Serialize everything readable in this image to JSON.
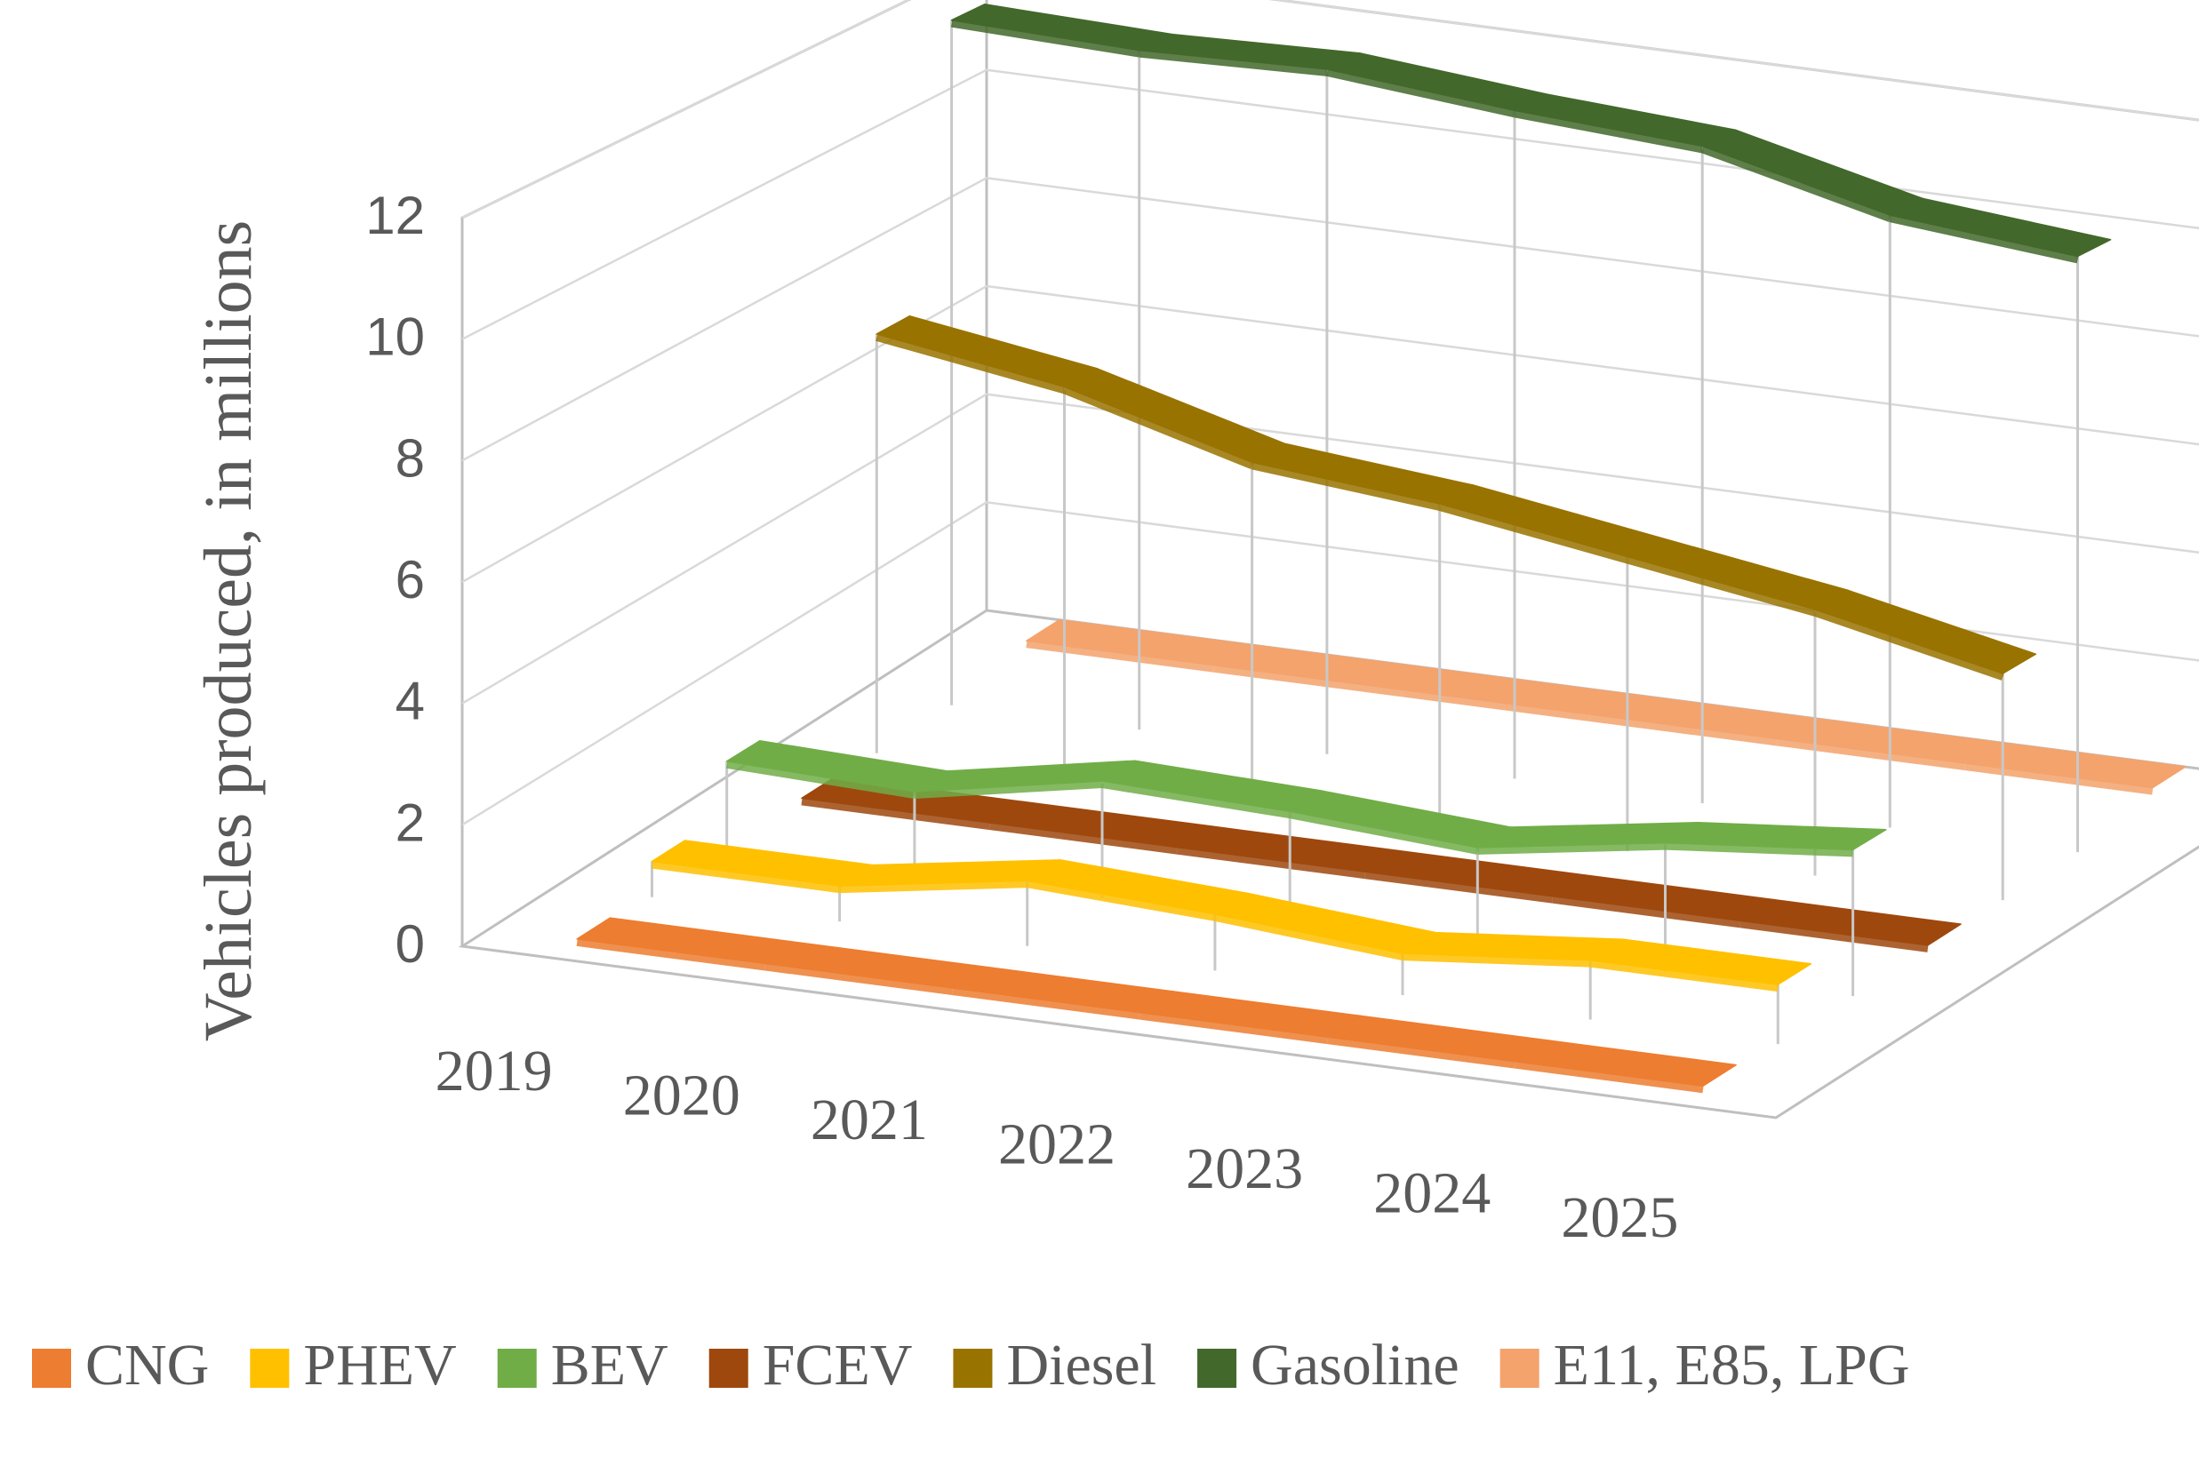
{
  "chart_data": {
    "type": "line",
    "title": "",
    "xlabel": "",
    "ylabel": "Vehicles produced, in millions",
    "categories": [
      "2019",
      "2020",
      "2021",
      "2022",
      "2023",
      "2024",
      "2025"
    ],
    "yticks": [
      "0",
      "2",
      "4",
      "6",
      "8",
      "10",
      "12"
    ],
    "ylim": [
      0,
      12
    ],
    "grid": true,
    "legend_position": "bottom",
    "series": [
      {
        "name": "CNG",
        "color": "#ED7D31",
        "values": [
          0.1,
          0.1,
          0.1,
          0.1,
          0.1,
          0.1,
          0.1
        ]
      },
      {
        "name": "PHEV",
        "color": "#FFC000",
        "values": [
          0.6,
          0.6,
          1.1,
          0.95,
          0.7,
          1.0,
          1.0
        ]
      },
      {
        "name": "BEV",
        "color": "#70AD47",
        "values": [
          1.5,
          1.4,
          2.0,
          1.9,
          1.7,
          2.2,
          2.5
        ]
      },
      {
        "name": "FCEV",
        "color": "#9E480E",
        "values": [
          0.05,
          0.05,
          0.05,
          0.05,
          0.05,
          0.05,
          0.05
        ]
      },
      {
        "name": "Diesel",
        "color": "#997300",
        "values": [
          7.4,
          6.9,
          6.0,
          5.7,
          5.2,
          4.7,
          4.0
        ]
      },
      {
        "name": "Gasoline",
        "color": "#43682B",
        "values": [
          12.3,
          12.2,
          12.3,
          12.0,
          11.8,
          11.0,
          10.7
        ]
      },
      {
        "name": "E11, E85, LPG",
        "color": "#F4A36C",
        "values": [
          0.3,
          0.3,
          0.3,
          0.3,
          0.3,
          0.3,
          0.3
        ]
      }
    ]
  },
  "chart_style": {
    "frame_color": "#bfbfbf",
    "grid_color": "#d9d9d9",
    "text_color": "#595959"
  }
}
